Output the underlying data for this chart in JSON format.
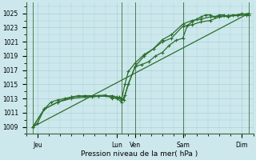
{
  "bg_color": "#cce8ec",
  "grid_color": "#aad0d8",
  "line_color": "#2d6e2d",
  "title": "Pression niveau de la mer( hPa )",
  "ylabel_values": [
    1009,
    1011,
    1013,
    1015,
    1017,
    1019,
    1021,
    1023,
    1025
  ],
  "ylim": [
    1008.0,
    1026.5
  ],
  "xlim": [
    0,
    10
  ],
  "day_ticks_pos": [
    0.5,
    4.0,
    4.8,
    6.9,
    9.5
  ],
  "day_labels": [
    "Jeu",
    "Lun",
    "Ven",
    "Sam",
    "Dim"
  ],
  "vlines": [
    0.3,
    4.2,
    4.8,
    6.9,
    9.8
  ],
  "series1_x": [
    0.3,
    0.5,
    0.8,
    1.1,
    1.4,
    1.7,
    2.0,
    2.3,
    2.6,
    2.9,
    3.2,
    3.5,
    3.8,
    4.1,
    4.2,
    4.3,
    4.5,
    4.8,
    5.1,
    5.4,
    5.7,
    6.0,
    6.3,
    6.6,
    6.9,
    7.1,
    7.3,
    7.5,
    7.7,
    7.9,
    8.1,
    8.3,
    8.5,
    8.7,
    8.9,
    9.1,
    9.3,
    9.5,
    9.7,
    9.8
  ],
  "series1_y": [
    1009.0,
    1009.5,
    1011.5,
    1012.5,
    1012.8,
    1013.0,
    1013.2,
    1013.4,
    1013.3,
    1013.2,
    1013.4,
    1013.5,
    1013.0,
    1013.2,
    1013.0,
    1012.8,
    1015.0,
    1017.5,
    1017.8,
    1018.2,
    1019.0,
    1019.5,
    1020.5,
    1021.2,
    1021.5,
    1023.3,
    1023.8,
    1024.2,
    1024.5,
    1024.8,
    1024.8,
    1024.5,
    1024.8,
    1024.8,
    1024.5,
    1024.8,
    1024.8,
    1025.0,
    1024.8,
    1025.0
  ],
  "series2_x": [
    0.3,
    0.8,
    1.4,
    2.0,
    2.6,
    3.2,
    3.8,
    4.0,
    4.2,
    4.35,
    4.5,
    4.8,
    5.2,
    5.6,
    6.0,
    6.4,
    6.9,
    7.3,
    7.7,
    8.1,
    8.5,
    8.9,
    9.3,
    9.8
  ],
  "series2_y": [
    1009.0,
    1011.5,
    1012.5,
    1013.2,
    1013.4,
    1013.4,
    1013.2,
    1013.0,
    1012.5,
    1013.5,
    1015.0,
    1017.5,
    1019.0,
    1020.0,
    1021.0,
    1021.5,
    1023.2,
    1023.4,
    1023.8,
    1024.0,
    1024.5,
    1024.6,
    1024.7,
    1024.8
  ],
  "series3_x": [
    0.3,
    0.8,
    1.4,
    2.0,
    2.6,
    3.2,
    3.8,
    4.0,
    4.2,
    4.35,
    4.5,
    4.8,
    5.2,
    5.6,
    6.0,
    6.4,
    6.9,
    7.3,
    7.7,
    8.1,
    8.5,
    8.9,
    9.3,
    9.8
  ],
  "series3_y": [
    1009.0,
    1011.5,
    1012.5,
    1013.0,
    1013.2,
    1013.3,
    1013.4,
    1013.2,
    1012.8,
    1015.0,
    1016.8,
    1018.0,
    1019.2,
    1020.0,
    1021.3,
    1022.0,
    1023.5,
    1024.0,
    1024.2,
    1024.5,
    1024.6,
    1024.7,
    1024.8,
    1025.0
  ],
  "series4_x": [
    0.3,
    9.8
  ],
  "series4_y": [
    1009.0,
    1025.0
  ],
  "marker": "+",
  "markersize": 3,
  "linewidth": 0.9
}
